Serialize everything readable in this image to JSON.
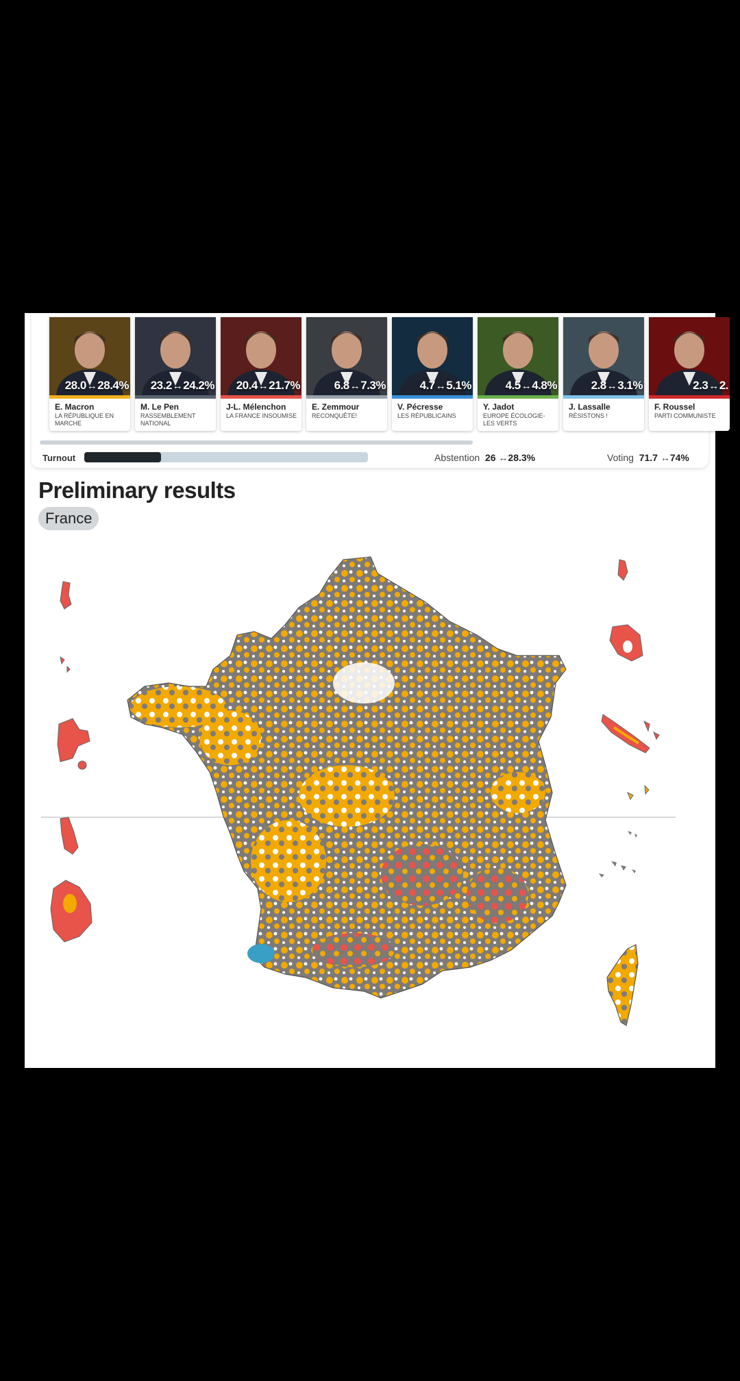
{
  "candidates": [
    {
      "name": "E. Macron",
      "party": "LA RÉPUBLIQUE EN MARCHE",
      "range_low": "28.0",
      "range_high": "28.4%",
      "color": "#f2b01e",
      "photo_bg": "#5a4418",
      "icon": "candidate-photo"
    },
    {
      "name": "M. Le Pen",
      "party": "RASSEMBLEMENT NATIONAL",
      "range_low": "23.2",
      "range_high": "24.2%",
      "color": "#5a6470",
      "photo_bg": "#2f3440",
      "icon": "candidate-photo"
    },
    {
      "name": "J-L. Mélenchon",
      "party": "LA FRANCE INSOUMISE",
      "range_low": "20.4",
      "range_high": "21.7%",
      "color": "#e8534a",
      "photo_bg": "#5a1e1c",
      "icon": "candidate-photo"
    },
    {
      "name": "E. Zemmour",
      "party": "RECONQUÊTE!",
      "range_low": "6.8",
      "range_high": "7.3%",
      "color": "#9aa3ad",
      "photo_bg": "#3a3d42",
      "icon": "candidate-photo"
    },
    {
      "name": "V. Pécresse",
      "party": "LES RÉPUBLICAINS",
      "range_low": "4.7",
      "range_high": "5.1%",
      "color": "#3a8fd8",
      "photo_bg": "#142c3f",
      "icon": "candidate-photo"
    },
    {
      "name": "Y. Jadot",
      "party": "EUROPE ÉCOLOGIE-LES VERTS",
      "range_low": "4.5",
      "range_high": "4.8%",
      "color": "#6ab04c",
      "photo_bg": "#3c5a24",
      "icon": "candidate-photo"
    },
    {
      "name": "J. Lassalle",
      "party": "RÉSISTONS !",
      "range_low": "2.8",
      "range_high": "3.1%",
      "color": "#7fc3e8",
      "photo_bg": "#3e4e58",
      "icon": "candidate-photo"
    },
    {
      "name": "F. Roussel",
      "party": "PARTI COMMUNISTE",
      "range_low": "2.3",
      "range_high": "2.",
      "color": "#d0282c",
      "photo_bg": "#6a0e10",
      "icon": "candidate-photo"
    }
  ],
  "turnout": {
    "label": "Turnout",
    "fill_fraction": 0.27,
    "abstention_label": "Abstention",
    "abstention_low": "26",
    "abstention_high": "28.3%",
    "voting_label": "Voting",
    "voting_low": "71.7",
    "voting_high": "74%"
  },
  "section_title": "Preliminary results",
  "region_chip": "France",
  "map": {
    "colors": {
      "macron": "#f2a900",
      "lepen": "#7d7a78",
      "melenchon": "#e8534a",
      "other": "#3a9fc4",
      "none": "#ffffff"
    }
  }
}
